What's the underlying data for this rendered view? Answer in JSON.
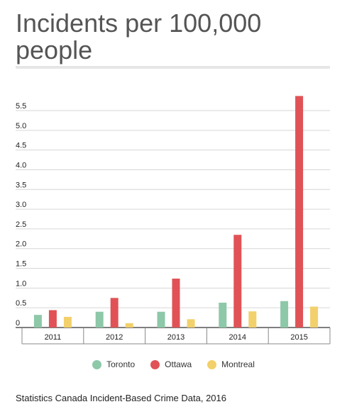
{
  "chart_data": {
    "type": "bar",
    "title": "Incidents per 100,000 people",
    "categories": [
      "2011",
      "2012",
      "2013",
      "2014",
      "2015"
    ],
    "series": [
      {
        "name": "Toronto",
        "color": "#8dc8a8",
        "values": [
          0.32,
          0.4,
          0.4,
          0.63,
          0.67
        ]
      },
      {
        "name": "Ottawa",
        "color": "#e05256",
        "values": [
          0.44,
          0.75,
          1.24,
          2.35,
          5.87
        ]
      },
      {
        "name": "Montreal",
        "color": "#f2d06b",
        "values": [
          0.27,
          0.11,
          0.21,
          0.41,
          0.53
        ]
      }
    ],
    "y_ticks": [
      "0",
      "0.5",
      "1.0",
      "1.5",
      "2.0",
      "2.5",
      "3.0",
      "3.5",
      "4.0",
      "4.5",
      "5.0",
      "5.5"
    ],
    "ylim": [
      0,
      6.0
    ],
    "grid": true,
    "legend_position": "bottom"
  },
  "source": "Statistics Canada Incident-Based Crime Data, 2016"
}
